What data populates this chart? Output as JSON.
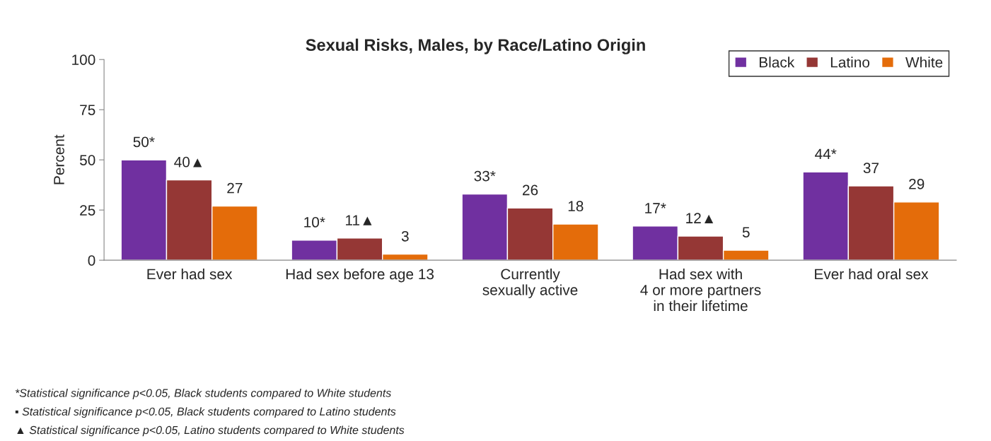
{
  "chart_data": {
    "type": "bar",
    "title": "Sexual Risks, Males, by Race/Latino Origin",
    "ylabel": "Percent",
    "categories": [
      "Ever had sex",
      "Had sex before age 13",
      "Currently\nsexually active",
      "Had sex with\n4 or more partners\nin their lifetime",
      "Ever had oral sex"
    ],
    "series": [
      {
        "name": "Black",
        "color": "#7030a0",
        "values": [
          50,
          10,
          33,
          17,
          44
        ],
        "value_labels": [
          "50*",
          "10*",
          "33*",
          "17*",
          "44*"
        ]
      },
      {
        "name": "Latino",
        "color": "#953735",
        "values": [
          40,
          11,
          26,
          12,
          37
        ],
        "value_labels": [
          "40▲",
          "11▲",
          "26",
          "12▲",
          "37"
        ]
      },
      {
        "name": "White",
        "color": "#e46c0a",
        "values": [
          27,
          3,
          18,
          5,
          29
        ],
        "value_labels": [
          "27",
          "3",
          "18",
          "5",
          "29"
        ]
      }
    ],
    "ylim": [
      0,
      100
    ],
    "yticks": [
      0,
      25,
      50,
      75,
      100
    ],
    "grid": false,
    "legend": "top right",
    "annotations": [
      "*Statistical significance p<0.05, Black students compared to White students",
      "▪ Statistical significance p<0.05, Black students compared to Latino students",
      "▲ Statistical significance p<0.05, Latino students compared to White students"
    ]
  }
}
